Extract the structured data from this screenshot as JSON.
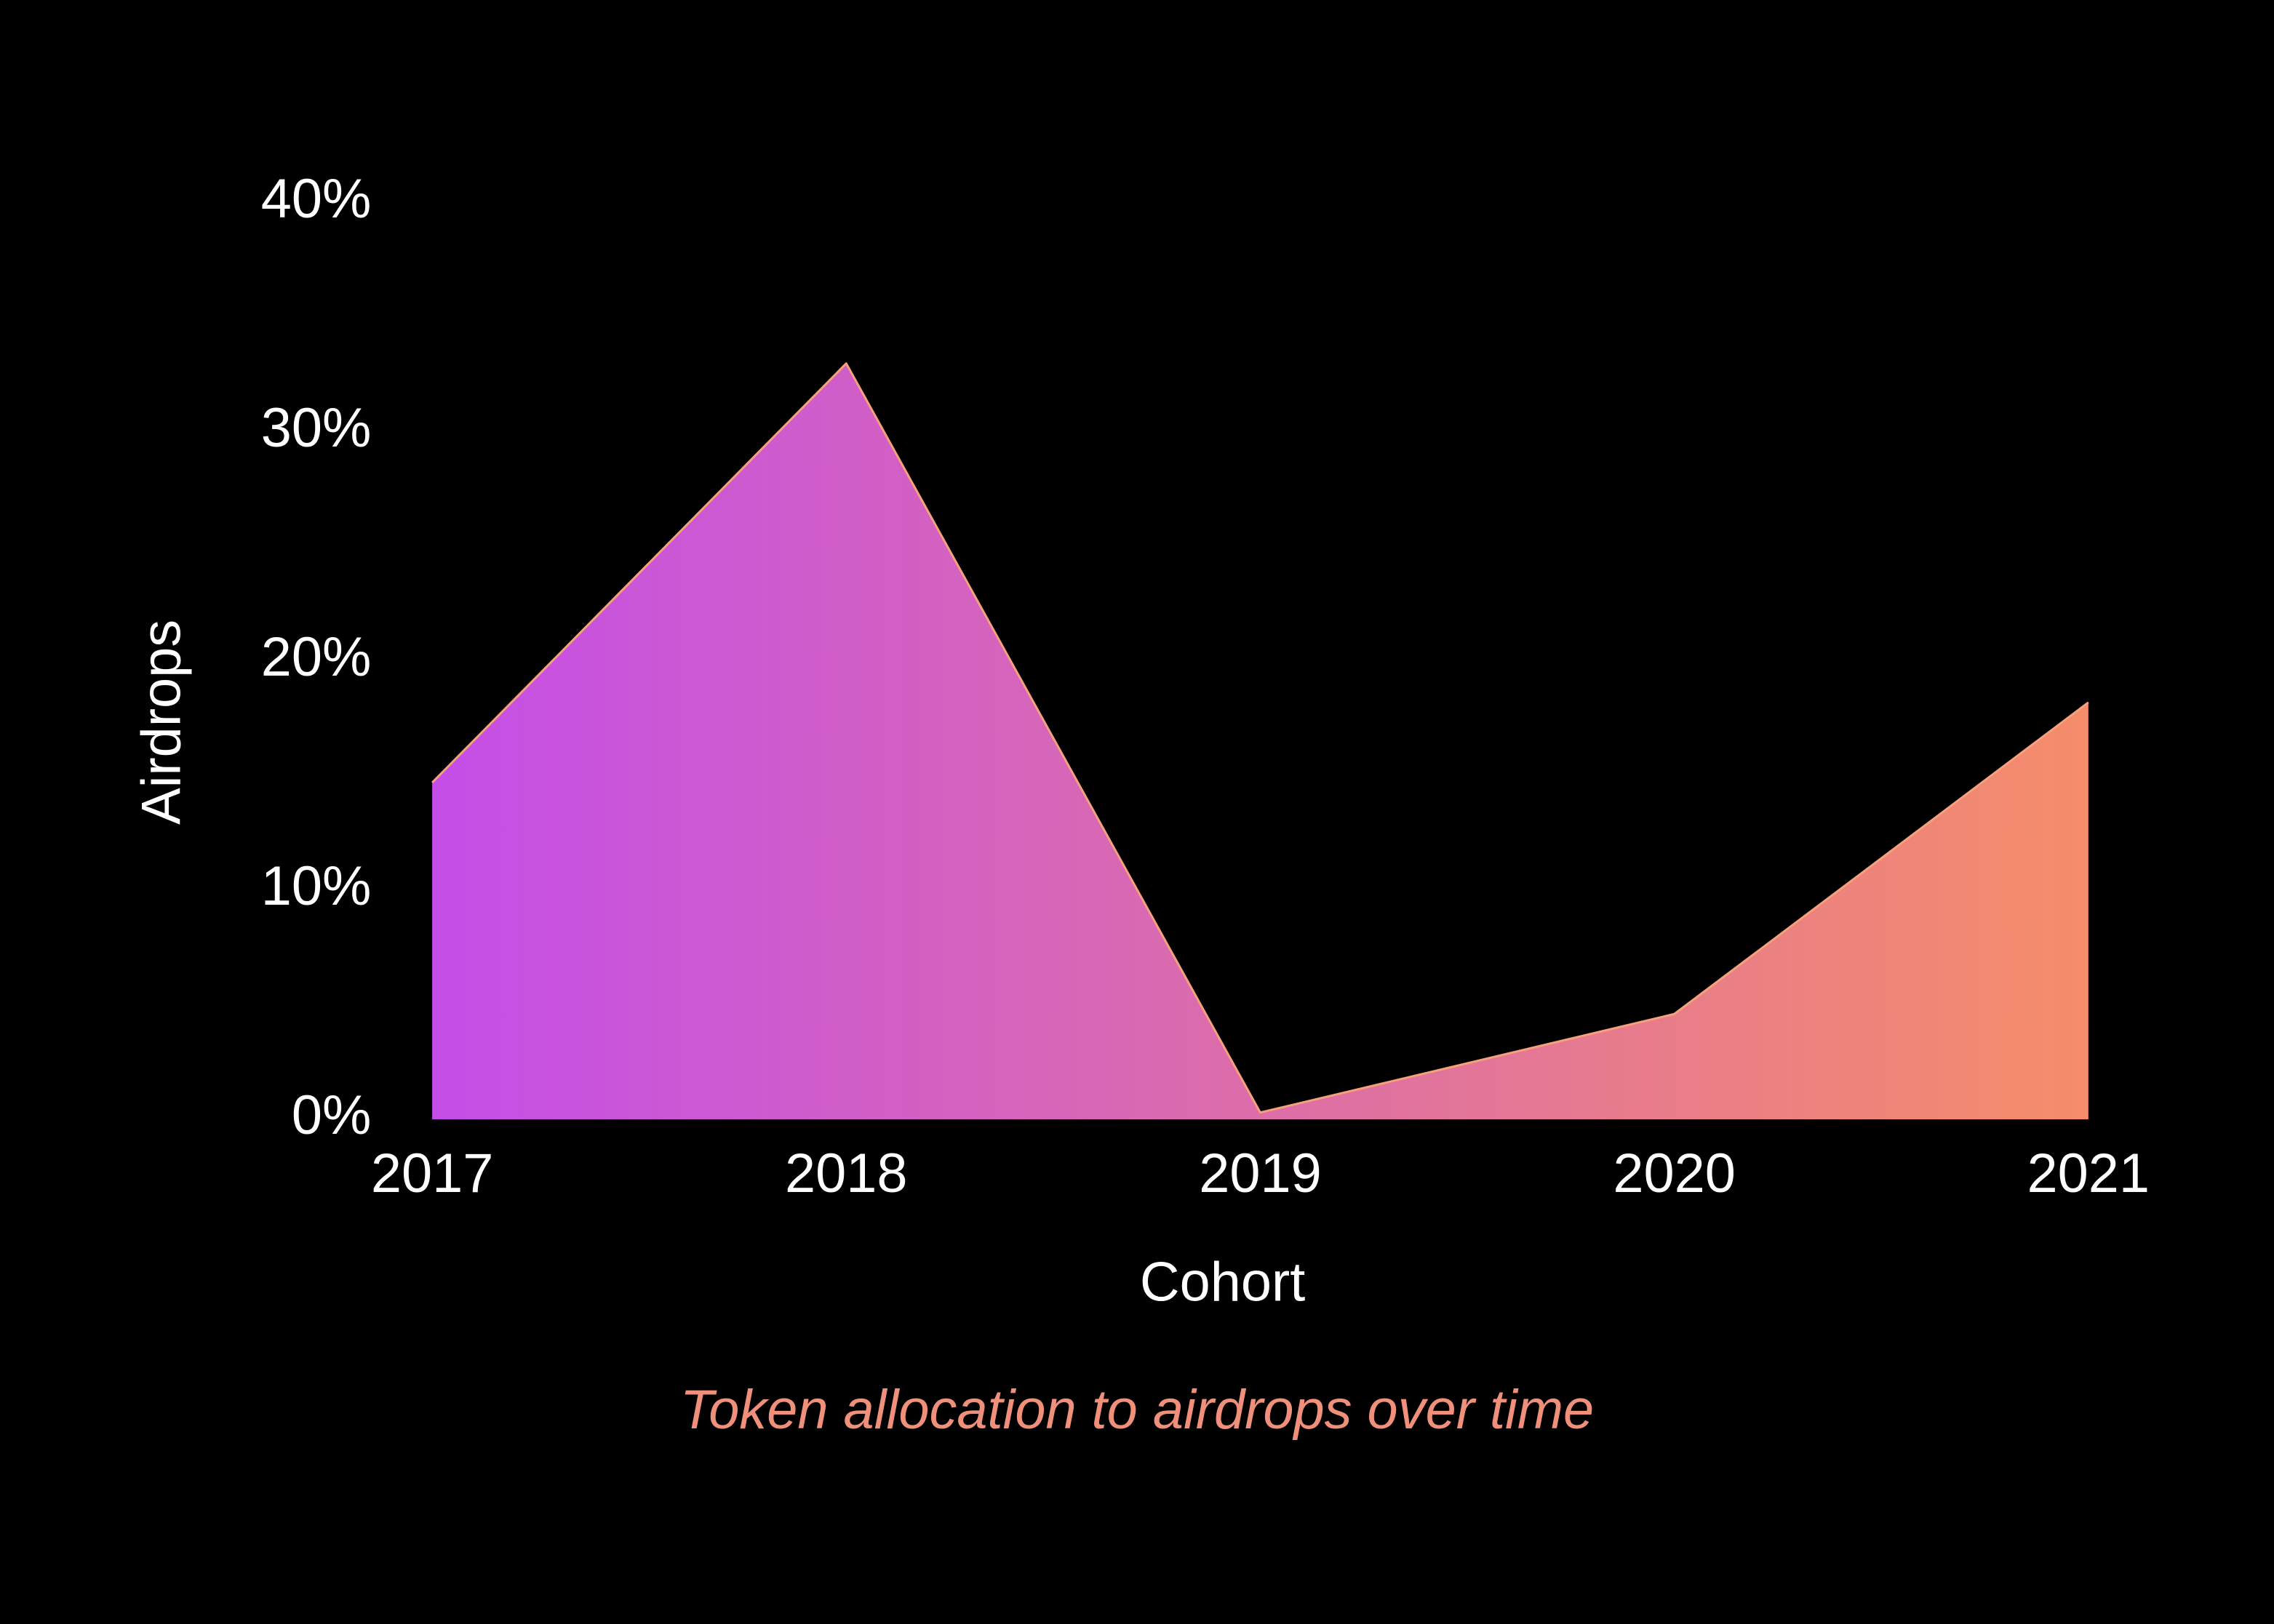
{
  "chart_data": {
    "type": "area",
    "title": "Token allocation to airdrops over time",
    "categories": [
      "2017",
      "2018",
      "2019",
      "2020",
      "2021"
    ],
    "values": [
      14.7,
      33,
      0.3,
      4.6,
      18.2
    ],
    "gradient": [
      "#c44ee8",
      "#f58d6a"
    ],
    "line_color": "#f7a07c",
    "x_label": "Cohort",
    "y_label": "Airdrops",
    "ylim": [
      0,
      40
    ],
    "yticks": [
      {
        "value": 0,
        "label": "0%"
      },
      {
        "value": 10,
        "label": "10%"
      },
      {
        "value": 20,
        "label": "20%"
      },
      {
        "value": 30,
        "label": "30%"
      },
      {
        "value": 40,
        "label": "40%"
      }
    ]
  }
}
